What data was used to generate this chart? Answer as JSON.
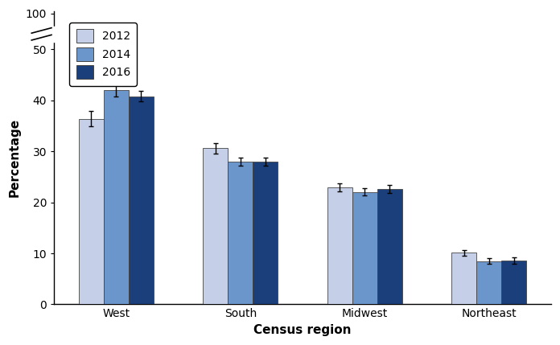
{
  "categories": [
    "West",
    "South",
    "Midwest",
    "Northeast"
  ],
  "years": [
    "2012",
    "2014",
    "2016"
  ],
  "values": {
    "West": [
      36.4,
      42.0,
      40.8
    ],
    "South": [
      30.6,
      28.0,
      28.0
    ],
    "Midwest": [
      22.9,
      22.0,
      22.6
    ],
    "Northeast": [
      10.1,
      8.5,
      8.6
    ]
  },
  "errors": {
    "West": [
      1.5,
      1.2,
      1.0
    ],
    "South": [
      1.0,
      0.8,
      0.8
    ],
    "Midwest": [
      0.8,
      0.7,
      0.8
    ],
    "Northeast": [
      0.6,
      0.6,
      0.6
    ]
  },
  "colors": [
    "#c5cfe8",
    "#6b96cc",
    "#1a3f7a"
  ],
  "bar_edge_color": "#444444",
  "xlabel": "Census region",
  "ylabel": "Percentage",
  "legend_labels": [
    "2012",
    "2014",
    "2016"
  ],
  "background_color": "#ffffff"
}
